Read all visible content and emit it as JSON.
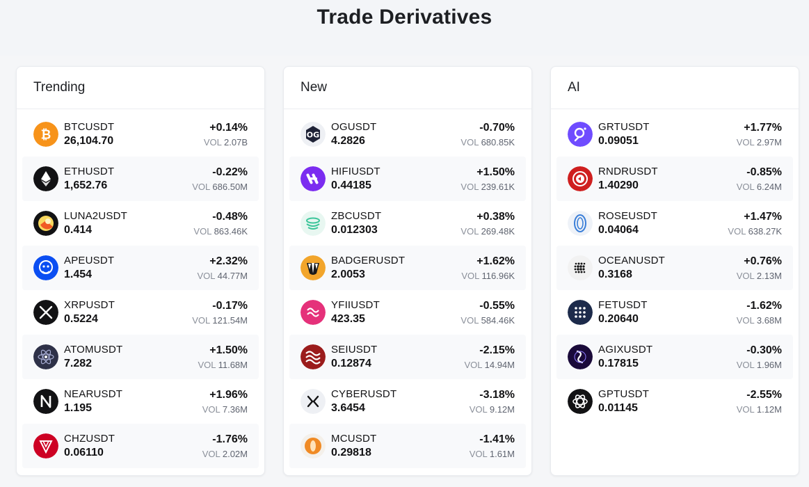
{
  "page": {
    "title": "Trade Derivatives"
  },
  "vol_label": "VOL",
  "columns": [
    {
      "title": "Trending",
      "rows": [
        {
          "symbol": "BTCUSDT",
          "price": "26,104.70",
          "change": "+0.14%",
          "volume": "2.07B",
          "icon": "btc-icon",
          "color": "#f7931a"
        },
        {
          "symbol": "ETHUSDT",
          "price": "1,652.76",
          "change": "-0.22%",
          "volume": "686.50M",
          "icon": "eth-icon",
          "color": "#121214"
        },
        {
          "symbol": "LUNA2USDT",
          "price": "0.414",
          "change": "-0.48%",
          "volume": "863.46K",
          "icon": "luna-icon",
          "color": "#121214"
        },
        {
          "symbol": "APEUSDT",
          "price": "1.454",
          "change": "+2.32%",
          "volume": "44.77M",
          "icon": "ape-icon",
          "color": "#0b4ef2"
        },
        {
          "symbol": "XRPUSDT",
          "price": "0.5224",
          "change": "-0.17%",
          "volume": "121.54M",
          "icon": "xrp-icon",
          "color": "#121214"
        },
        {
          "symbol": "ATOMUSDT",
          "price": "7.282",
          "change": "+1.50%",
          "volume": "11.68M",
          "icon": "atom-icon",
          "color": "#2e3148"
        },
        {
          "symbol": "NEARUSDT",
          "price": "1.195",
          "change": "+1.96%",
          "volume": "7.36M",
          "icon": "near-icon",
          "color": "#121214"
        },
        {
          "symbol": "CHZUSDT",
          "price": "0.06110",
          "change": "-1.76%",
          "volume": "2.02M",
          "icon": "chz-icon",
          "color": "#cd0124"
        }
      ]
    },
    {
      "title": "New",
      "rows": [
        {
          "symbol": "OGUSDT",
          "price": "4.2826",
          "change": "-0.70%",
          "volume": "680.85K",
          "icon": "og-icon",
          "color": "#eef0f4"
        },
        {
          "symbol": "HIFIUSDT",
          "price": "0.44185",
          "change": "+1.50%",
          "volume": "239.61K",
          "icon": "hifi-icon",
          "color": "#7b2cf0"
        },
        {
          "symbol": "ZBCUSDT",
          "price": "0.012303",
          "change": "+0.38%",
          "volume": "269.48K",
          "icon": "zbc-icon",
          "color": "#e8f7f1"
        },
        {
          "symbol": "BADGERUSDT",
          "price": "2.0053",
          "change": "+1.62%",
          "volume": "116.96K",
          "icon": "badger-icon",
          "color": "#f2a52b"
        },
        {
          "symbol": "YFIIUSDT",
          "price": "423.35",
          "change": "-0.55%",
          "volume": "584.46K",
          "icon": "yfii-icon",
          "color": "#e5317a"
        },
        {
          "symbol": "SEIUSDT",
          "price": "0.12874",
          "change": "-2.15%",
          "volume": "14.94M",
          "icon": "sei-icon",
          "color": "#9b1c1c"
        },
        {
          "symbol": "CYBERUSDT",
          "price": "3.6454",
          "change": "-3.18%",
          "volume": "9.12M",
          "icon": "cyber-icon",
          "color": "#eef0f4"
        },
        {
          "symbol": "MCUSDT",
          "price": "0.29818",
          "change": "-1.41%",
          "volume": "1.61M",
          "icon": "mc-icon",
          "color": "#f08a24"
        }
      ]
    },
    {
      "title": "AI",
      "rows": [
        {
          "symbol": "GRTUSDT",
          "price": "0.09051",
          "change": "+1.77%",
          "volume": "2.97M",
          "icon": "grt-icon",
          "color": "#6f4cff"
        },
        {
          "symbol": "RNDRUSDT",
          "price": "1.40290",
          "change": "-0.85%",
          "volume": "6.24M",
          "icon": "rndr-icon",
          "color": "#cf1f1f"
        },
        {
          "symbol": "ROSEUSDT",
          "price": "0.04064",
          "change": "+1.47%",
          "volume": "638.27K",
          "icon": "rose-icon",
          "color": "#eef2f8"
        },
        {
          "symbol": "OCEANUSDT",
          "price": "0.3168",
          "change": "+0.76%",
          "volume": "2.13M",
          "icon": "ocean-icon",
          "color": "#f2f2f2"
        },
        {
          "symbol": "FETUSDT",
          "price": "0.20640",
          "change": "-1.62%",
          "volume": "3.68M",
          "icon": "fet-icon",
          "color": "#1d2b4b"
        },
        {
          "symbol": "AGIXUSDT",
          "price": "0.17815",
          "change": "-0.30%",
          "volume": "1.96M",
          "icon": "agix-icon",
          "color": "#1a0a3a"
        },
        {
          "symbol": "GPTUSDT",
          "price": "0.01145",
          "change": "-2.55%",
          "volume": "1.12M",
          "icon": "gpt-icon",
          "color": "#121214"
        }
      ]
    }
  ]
}
